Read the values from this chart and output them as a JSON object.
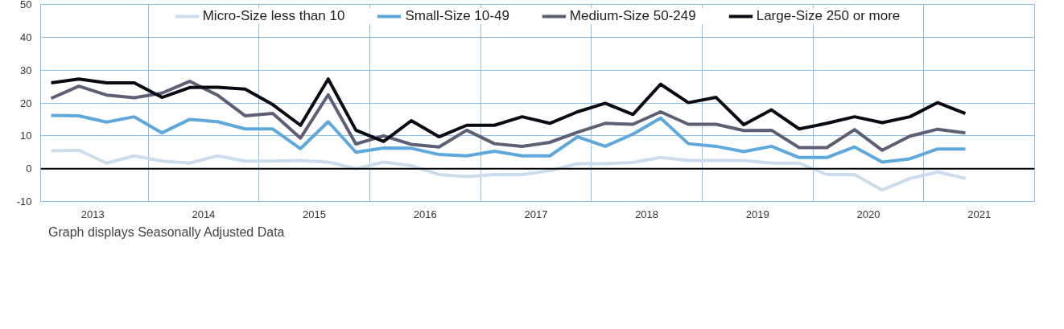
{
  "chart_data": {
    "type": "line",
    "x": [
      2013.125,
      2013.375,
      2013.625,
      2013.875,
      2014.125,
      2014.375,
      2014.625,
      2014.875,
      2015.125,
      2015.375,
      2015.625,
      2015.875,
      2016.125,
      2016.375,
      2016.625,
      2016.875,
      2017.125,
      2017.375,
      2017.625,
      2017.875,
      2018.125,
      2018.375,
      2018.625,
      2018.875,
      2019.125,
      2019.375,
      2019.625,
      2019.875,
      2020.125,
      2020.375,
      2020.625,
      2020.875,
      2021.125,
      2021.375
    ],
    "series": [
      {
        "name": "Micro-Size less than 10",
        "color": "#ccdcec",
        "values": [
          5.4,
          5.6,
          1.7,
          3.9,
          2.3,
          1.7,
          3.9,
          2.3,
          2.3,
          2.5,
          2.0,
          0.0,
          2.0,
          0.9,
          -1.8,
          -2.4,
          -1.8,
          -1.8,
          -0.6,
          1.5,
          1.5,
          1.9,
          3.4,
          2.5,
          2.5,
          2.5,
          1.7,
          1.7,
          -1.8,
          -1.8,
          -6.5,
          -3.0,
          -1.0,
          -3.0
        ]
      },
      {
        "name": "Small-Size 10-49",
        "color": "#5fa8dc",
        "values": [
          16.2,
          16.1,
          14.2,
          15.8,
          10.9,
          15.0,
          14.3,
          12.1,
          12.1,
          6.1,
          14.3,
          5.0,
          6.3,
          6.2,
          4.3,
          3.9,
          5.3,
          3.9,
          3.9,
          9.7,
          6.8,
          10.5,
          15.4,
          7.6,
          6.8,
          5.2,
          6.8,
          3.4,
          3.4,
          6.6,
          2.0,
          3.0,
          6.0,
          6.0
        ]
      },
      {
        "name": "Medium-Size 50-249",
        "color": "#5d5f74",
        "values": [
          21.4,
          25.1,
          22.4,
          21.6,
          23.0,
          26.6,
          22.4,
          16.1,
          16.8,
          9.3,
          22.5,
          7.5,
          10.0,
          7.4,
          6.6,
          11.7,
          7.6,
          6.8,
          8.0,
          11.1,
          13.8,
          13.5,
          17.3,
          13.5,
          13.5,
          11.6,
          11.7,
          6.4,
          6.4,
          11.9,
          5.6,
          9.9,
          12.0,
          10.9
        ]
      },
      {
        "name": "Large-Size 250 or more",
        "color": "#0a0a14",
        "values": [
          26.1,
          27.3,
          26.1,
          26.1,
          21.7,
          24.7,
          24.8,
          24.2,
          19.5,
          13.2,
          27.3,
          11.7,
          8.3,
          14.6,
          9.7,
          13.2,
          13.2,
          15.8,
          13.8,
          17.3,
          19.9,
          16.5,
          25.7,
          20.1,
          21.7,
          13.4,
          17.9,
          12.1,
          13.8,
          15.8,
          14.0,
          15.8,
          20.1,
          16.8
        ]
      }
    ],
    "xlim": [
      2013.03,
      2022.0
    ],
    "xticks": [
      {
        "value": 2013.5,
        "label": "2013"
      },
      {
        "value": 2014.0,
        "label": null
      },
      {
        "value": 2014.5,
        "label": "2014"
      },
      {
        "value": 2015.0,
        "label": null
      },
      {
        "value": 2015.5,
        "label": "2015"
      },
      {
        "value": 2016.0,
        "label": null
      },
      {
        "value": 2016.5,
        "label": "2016"
      },
      {
        "value": 2017.0,
        "label": null
      },
      {
        "value": 2017.5,
        "label": "2017"
      },
      {
        "value": 2018.0,
        "label": null
      },
      {
        "value": 2018.5,
        "label": "2018"
      },
      {
        "value": 2019.0,
        "label": null
      },
      {
        "value": 2019.5,
        "label": "2019"
      },
      {
        "value": 2020.0,
        "label": null
      },
      {
        "value": 2020.5,
        "label": "2020"
      },
      {
        "value": 2021.0,
        "label": null
      },
      {
        "value": 2021.5,
        "label": "2021"
      }
    ],
    "ylim": [
      -10,
      50
    ],
    "yticks": [
      -10,
      0,
      10,
      20,
      30,
      40,
      50
    ],
    "ref_lines": [
      {
        "axis": "y",
        "value": 0,
        "color": "#000000"
      }
    ],
    "grid": true,
    "legend": "top",
    "marker": "none",
    "line_style": "solid",
    "annotations": [
      "Graph displays Seasonally Adjusted Data"
    ]
  }
}
